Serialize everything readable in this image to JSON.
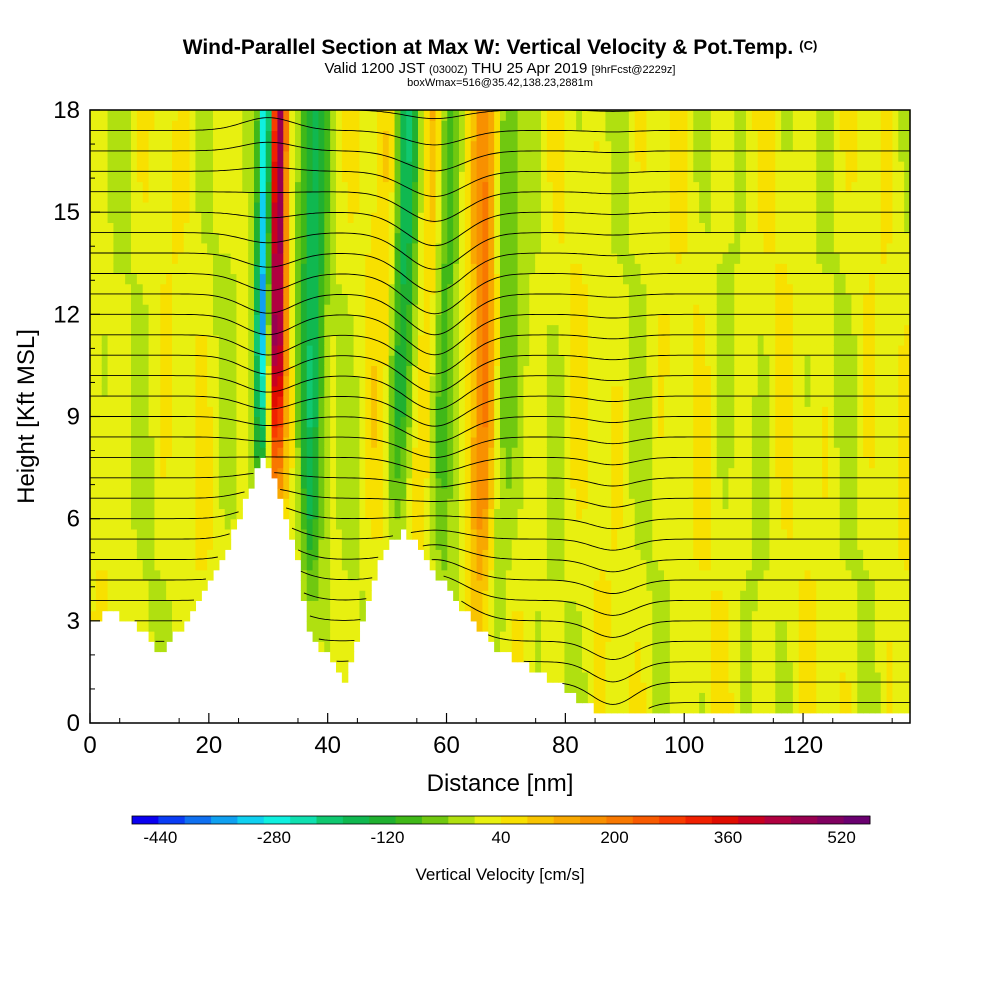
{
  "chart_data": {
    "type": "heatmap",
    "title": "Wind-Parallel Section at Max W: Vertical Velocity & Pot.Temp.",
    "copyright": "(C)",
    "subtitle_main": "Valid 1200 JST",
    "subtitle_utc": "(0300Z)",
    "subtitle_date": "THU 25 Apr 2019",
    "subtitle_fcst": "[9hrFcst@2229z]",
    "info": "boxWmax=516@35.42,138.23,2881m",
    "xlabel": "Distance [nm]",
    "ylabel": "Height [Kft MSL]",
    "xlim": [
      0,
      138
    ],
    "ylim": [
      0,
      18
    ],
    "x_ticks": [
      "0",
      "20",
      "40",
      "60",
      "80",
      "100",
      "120"
    ],
    "y_ticks": [
      "0",
      "3",
      "6",
      "9",
      "12",
      "15",
      "18"
    ],
    "colorbar": {
      "title": "Vertical Velocity [cm/s]",
      "labels": [
        "-440",
        "-280",
        "-120",
        "40",
        "200",
        "360",
        "520"
      ],
      "colors": [
        "#0a00f0",
        "#0a3cf5",
        "#1070f0",
        "#10a0f0",
        "#10d0f0",
        "#10f0e0",
        "#10e0b0",
        "#10c870",
        "#10b850",
        "#20b030",
        "#40b818",
        "#70c810",
        "#b0e010",
        "#e8f010",
        "#f8e000",
        "#f8c400",
        "#f8a800",
        "#f89000",
        "#f87800",
        "#f85a00",
        "#f83c00",
        "#f02000",
        "#e00c00",
        "#c80020",
        "#b00040",
        "#980050",
        "#800060",
        "#6a0070"
      ],
      "vmin": -480,
      "vmax": 560
    },
    "vertical_velocity_features": [
      {
        "x": 29,
        "w": -420,
        "description_ref": "strong downdraft"
      },
      {
        "x": 31,
        "w": 516
      },
      {
        "x": 37,
        "w": -180
      },
      {
        "x": 50,
        "w": 80
      },
      {
        "x": 52,
        "w": -200
      },
      {
        "x": 57,
        "w": 120
      },
      {
        "x": 59,
        "w": -140
      },
      {
        "x": 66,
        "w": 180
      },
      {
        "x": 69,
        "w": -100
      }
    ],
    "terrain_height_kft": {
      "x": [
        0,
        4,
        8,
        12,
        16,
        20,
        24,
        27,
        29,
        31,
        33,
        35,
        37,
        40,
        43,
        46,
        49,
        52,
        55,
        58,
        61,
        65,
        70,
        75,
        80,
        84,
        88,
        92,
        138
      ],
      "h": [
        3,
        3.3,
        2.8,
        2.1,
        3.0,
        4.2,
        5.5,
        7.0,
        7.8,
        7.2,
        6.0,
        4.8,
        2.6,
        2.0,
        1.3,
        3.0,
        4.8,
        5.6,
        5.4,
        4.5,
        3.8,
        2.8,
        2.0,
        1.5,
        1.0,
        0.5,
        0.3,
        0.3,
        0.3
      ]
    }
  }
}
